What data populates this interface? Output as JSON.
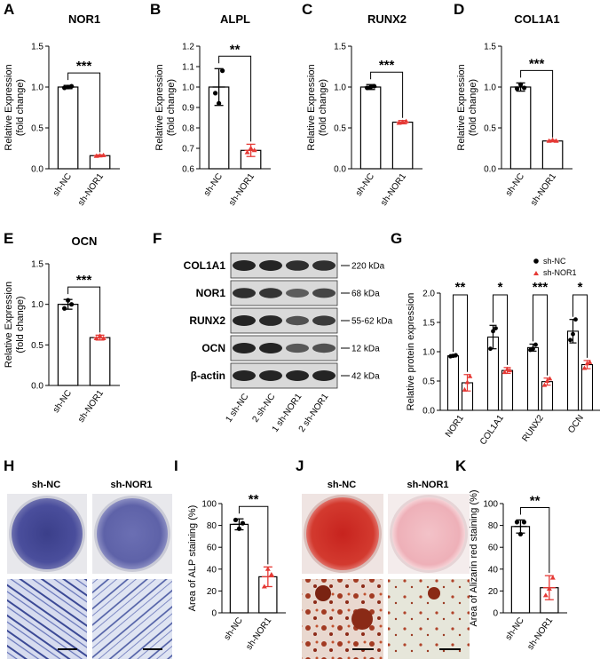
{
  "colors": {
    "control": "#000000",
    "knockdown": "#e53935",
    "axis": "#000000"
  },
  "panels": {
    "A": {
      "label": "A"
    },
    "B": {
      "label": "B"
    },
    "C": {
      "label": "C"
    },
    "D": {
      "label": "D"
    },
    "E": {
      "label": "E"
    },
    "F": {
      "label": "F"
    },
    "G": {
      "label": "G"
    },
    "H": {
      "label": "H"
    },
    "I": {
      "label": "I"
    },
    "J": {
      "label": "J"
    },
    "K": {
      "label": "K"
    }
  },
  "images": {
    "H": {
      "left_label": "sh-NC",
      "right_label": "sh-NOR1"
    },
    "J": {
      "left_label": "sh-NC",
      "right_label": "sh-NOR1"
    }
  },
  "blot": {
    "proteins": [
      {
        "name": "COL1A1",
        "size": "220 kDa"
      },
      {
        "name": "NOR1",
        "size": "68 kDa"
      },
      {
        "name": "RUNX2",
        "size": "55-62 kDa"
      },
      {
        "name": "OCN",
        "size": "12 kDa"
      },
      {
        "name": "β-actin",
        "size": "42 kDa"
      }
    ],
    "lanes": [
      "1 sh-NC",
      "2 sh-NC",
      "1 sh-NOR1",
      "2 sh-NOR1"
    ]
  },
  "chart_data": [
    {
      "id": "A",
      "type": "bar",
      "title": "NOR1",
      "ylabel": [
        "Relative  Expression",
        "(fold change)"
      ],
      "categories": [
        "sh-NC",
        "sh-NOR1"
      ],
      "values": [
        1.0,
        0.16
      ],
      "errors": [
        0.02,
        0.01
      ],
      "points": [
        [
          0.99,
          1.0,
          1.01
        ],
        [
          0.155,
          0.16,
          0.165
        ]
      ],
      "ylim": [
        0,
        1.5
      ],
      "yticks": [
        "0.0",
        "0.5",
        "1.0",
        "1.5"
      ],
      "significance": "***"
    },
    {
      "id": "B",
      "type": "bar",
      "title": "ALPL",
      "ylabel": [
        "Relative  Expression",
        "(fold change)"
      ],
      "categories": [
        "sh-NC",
        "sh-NOR1"
      ],
      "values": [
        1.0,
        0.69
      ],
      "errors": [
        0.09,
        0.03
      ],
      "points": [
        [
          0.97,
          0.92,
          1.08
        ],
        [
          0.68,
          0.7,
          0.69
        ]
      ],
      "ylim": [
        0.6,
        1.2
      ],
      "yticks": [
        "0.6",
        "0.7",
        "0.8",
        "0.9",
        "1.0",
        "1.1",
        "1.2"
      ],
      "significance": "**"
    },
    {
      "id": "C",
      "type": "bar",
      "title": "RUNX2",
      "ylabel": [
        "Relative  Expression",
        "(fold change)"
      ],
      "categories": [
        "sh-NC",
        "sh-NOR1"
      ],
      "values": [
        1.0,
        0.57
      ],
      "errors": [
        0.03,
        0.02
      ],
      "points": [
        [
          0.99,
          1.0,
          1.01
        ],
        [
          0.56,
          0.57,
          0.58
        ]
      ],
      "ylim": [
        0,
        1.5
      ],
      "yticks": [
        "0.0",
        "0.5",
        "1.0",
        "1.5"
      ],
      "significance": "***"
    },
    {
      "id": "D",
      "type": "bar",
      "title": "COL1A1",
      "ylabel": [
        "Relative  Expression",
        "(fold change)"
      ],
      "categories": [
        "sh-NC",
        "sh-NOR1"
      ],
      "values": [
        1.0,
        0.34
      ],
      "errors": [
        0.05,
        0.01
      ],
      "points": [
        [
          0.98,
          1.03,
          0.99
        ],
        [
          0.34,
          0.35,
          0.34
        ]
      ],
      "ylim": [
        0,
        1.5
      ],
      "yticks": [
        "0.0",
        "0.5",
        "1.0",
        "1.5"
      ],
      "significance": "***"
    },
    {
      "id": "E",
      "type": "bar",
      "title": "OCN",
      "ylabel": [
        "Relative  Expression",
        "(fold change)"
      ],
      "categories": [
        "sh-NC",
        "sh-NOR1"
      ],
      "values": [
        1.0,
        0.59
      ],
      "errors": [
        0.06,
        0.03
      ],
      "points": [
        [
          0.95,
          1.05,
          1.0
        ],
        [
          0.58,
          0.61,
          0.58
        ]
      ],
      "ylim": [
        0,
        1.5
      ],
      "yticks": [
        "0.0",
        "0.5",
        "1.0",
        "1.5"
      ],
      "significance": "***"
    },
    {
      "id": "G",
      "type": "bar",
      "title": "",
      "ylabel": [
        "Relative protein expression"
      ],
      "categories": [
        "NOR1",
        "COL1A1",
        "RUNX2",
        "OCN"
      ],
      "series": [
        {
          "name": "sh-NC",
          "values": [
            0.93,
            1.25,
            1.07,
            1.35
          ],
          "errors": [
            0.02,
            0.2,
            0.06,
            0.2
          ],
          "points": [
            [
              0.92,
              0.93,
              0.94
            ],
            [
              1.05,
              1.35,
              1.4
            ],
            [
              1.03,
              1.05,
              1.12
            ],
            [
              1.2,
              1.3,
              1.55
            ]
          ]
        },
        {
          "name": "sh-NOR1",
          "values": [
            0.47,
            0.68,
            0.49,
            0.78
          ],
          "errors": [
            0.14,
            0.05,
            0.06,
            0.07
          ],
          "points": [
            [
              0.35,
              0.48,
              0.58
            ],
            [
              0.65,
              0.7,
              0.68
            ],
            [
              0.43,
              0.5,
              0.54
            ],
            [
              0.72,
              0.8,
              0.82
            ]
          ]
        }
      ],
      "ylim": [
        0,
        2.0
      ],
      "yticks": [
        "0.0",
        "0.5",
        "1.0",
        "1.5",
        "2.0"
      ],
      "significance": [
        "**",
        "*",
        "***",
        "*"
      ]
    },
    {
      "id": "I",
      "type": "bar",
      "title": "",
      "ylabel": [
        "Area of ALP staining (%)"
      ],
      "categories": [
        "sh-NC",
        "sh-NOR1"
      ],
      "values": [
        81,
        33
      ],
      "errors": [
        5,
        9
      ],
      "points": [
        [
          85,
          77,
          82
        ],
        [
          24,
          40,
          35
        ]
      ],
      "ylim": [
        0,
        100
      ],
      "yticks": [
        "0",
        "20",
        "40",
        "60",
        "80",
        "100"
      ],
      "significance": "**"
    },
    {
      "id": "K",
      "type": "bar",
      "title": "",
      "ylabel": [
        "Area of Alizarin red staining (%)"
      ],
      "categories": [
        "sh-NC",
        "sh-NOR1"
      ],
      "values": [
        79,
        23
      ],
      "errors": [
        6,
        11
      ],
      "points": [
        [
          83,
          72,
          83
        ],
        [
          16,
          22,
          32
        ]
      ],
      "ylim": [
        0,
        100
      ],
      "yticks": [
        "0",
        "20",
        "40",
        "60",
        "80",
        "100"
      ],
      "significance": "**"
    }
  ]
}
